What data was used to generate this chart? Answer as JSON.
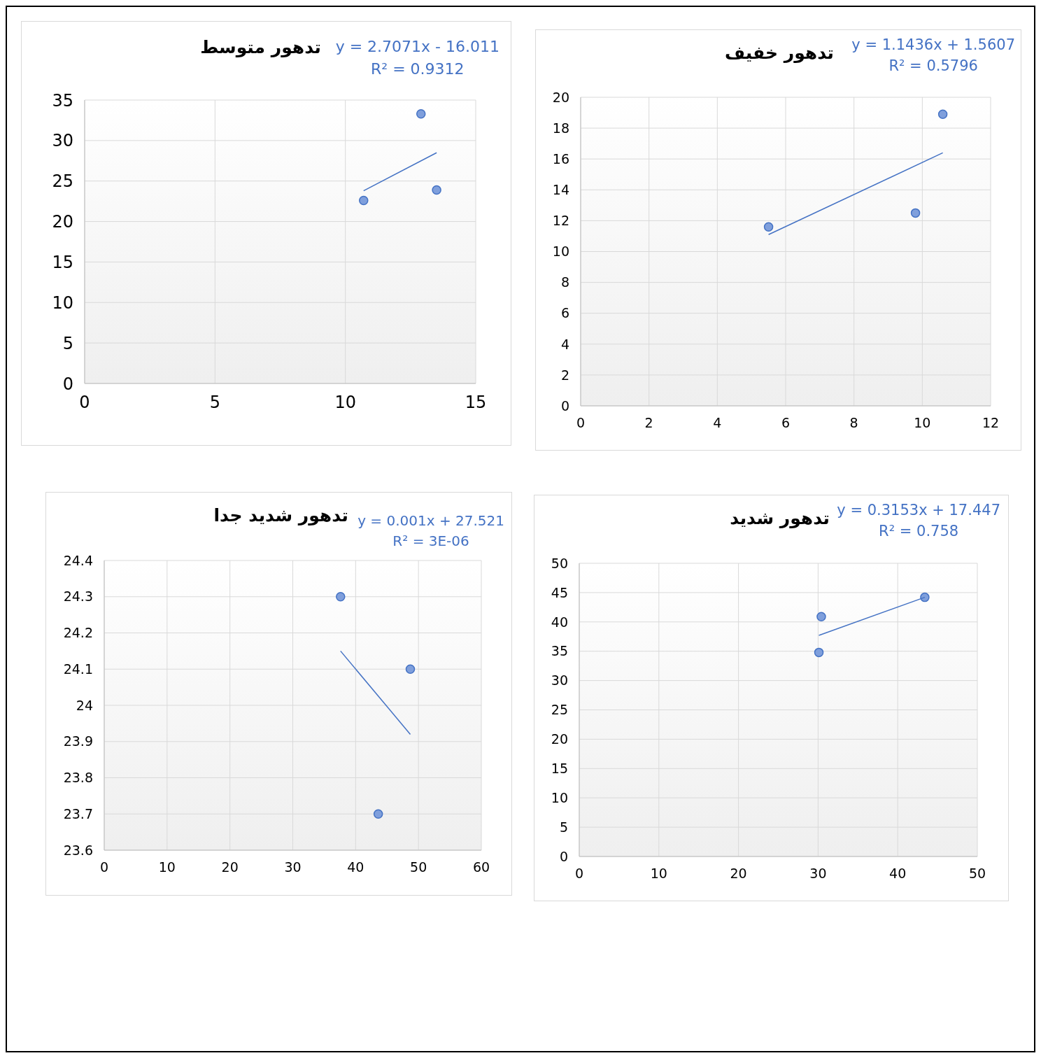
{
  "chart_data": [
    {
      "type": "scatter",
      "title": "تدهور متوسط",
      "annotations": [
        "y = 2.7071x - 16.011",
        "R² = 0.9312"
      ],
      "x": [
        10.7,
        12.9,
        13.5
      ],
      "xlim": [
        0,
        15
      ],
      "xticks": [
        0,
        5,
        10,
        15
      ],
      "ylim": [
        0,
        35
      ],
      "yticks": [
        0,
        5,
        10,
        15,
        20,
        25,
        30,
        35
      ],
      "grid": true,
      "legend": false,
      "series": [
        {
          "color": "#7f9fdc",
          "marker": "circle",
          "values": [
            22.6,
            33.3,
            23.9
          ]
        },
        {
          "type": "line",
          "marker": "none",
          "color": "#4472c4",
          "x": [
            10.7,
            13.5
          ],
          "values": [
            23.8,
            28.5
          ]
        }
      ]
    },
    {
      "type": "scatter",
      "title": "تدهور خفيف",
      "annotations": [
        "y = 1.1436x + 1.5607",
        "R² = 0.5796"
      ],
      "x": [
        5.5,
        10.6,
        9.8
      ],
      "xlim": [
        0,
        12
      ],
      "xticks": [
        0,
        2,
        4,
        6,
        8,
        10,
        12
      ],
      "ylim": [
        0,
        20
      ],
      "yticks": [
        0,
        2,
        4,
        6,
        8,
        10,
        12,
        14,
        16,
        18,
        20
      ],
      "grid": true,
      "legend": false,
      "series": [
        {
          "color": "#7f9fdc",
          "marker": "circle",
          "values": [
            11.6,
            18.9,
            12.5
          ]
        },
        {
          "type": "line",
          "marker": "none",
          "color": "#4472c4",
          "x": [
            5.5,
            10.6
          ],
          "values": [
            11.1,
            16.4
          ]
        }
      ]
    },
    {
      "type": "scatter",
      "title": "تدهور شديد جدا",
      "annotations": [
        "y = 0.001x + 27.521",
        "R² = 3E-06"
      ],
      "x": [
        37.6,
        48.7,
        43.6
      ],
      "xlim": [
        0,
        60
      ],
      "xticks": [
        0,
        10,
        20,
        30,
        40,
        50,
        60
      ],
      "ylim": [
        23.6,
        24.4
      ],
      "yticks": [
        23.6,
        23.7,
        23.8,
        23.9,
        24,
        24.1,
        24.2,
        24.3,
        24.4
      ],
      "grid": true,
      "legend": false,
      "series": [
        {
          "color": "#7f9fdc",
          "marker": "circle",
          "values": [
            24.3,
            24.1,
            23.7
          ]
        },
        {
          "type": "line",
          "marker": "none",
          "color": "#4472c4",
          "x": [
            37.6,
            48.7
          ],
          "values": [
            24.15,
            23.92
          ]
        }
      ]
    },
    {
      "type": "scatter",
      "title": "تدهور شديد",
      "annotations": [
        "y = 0.3153x + 17.447",
        "R² = 0.758"
      ],
      "x": [
        30.4,
        30.1,
        43.4
      ],
      "xlim": [
        0,
        50
      ],
      "xticks": [
        0,
        10,
        20,
        30,
        40,
        50
      ],
      "ylim": [
        0,
        50
      ],
      "yticks": [
        0,
        5,
        10,
        15,
        20,
        25,
        30,
        35,
        40,
        45,
        50
      ],
      "grid": true,
      "legend": false,
      "series": [
        {
          "color": "#7f9fdc",
          "marker": "circle",
          "values": [
            40.9,
            34.8,
            44.2
          ]
        },
        {
          "type": "line",
          "marker": "none",
          "color": "#4472c4",
          "x": [
            30.1,
            43.4
          ],
          "values": [
            37.7,
            44.2
          ]
        }
      ]
    }
  ]
}
